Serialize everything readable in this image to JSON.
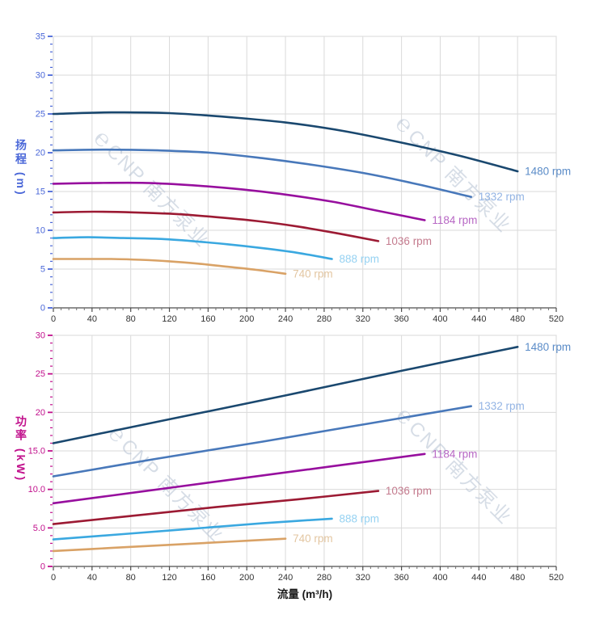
{
  "watermark": {
    "logo": "℮",
    "text": "CNP 南方泵业",
    "color": "#b6c2d3"
  },
  "chart_data": [
    {
      "id": "head",
      "type": "line",
      "title": "",
      "ylabel": "扬程 (m)",
      "xlabel": "",
      "axis_color": "#4a67d8",
      "x_tick_color": "#333333",
      "grid": true,
      "legend_position": "line-end",
      "xlim": [
        0,
        520
      ],
      "ylim": [
        0,
        35
      ],
      "x_major": 40,
      "x_minor": 8,
      "y_minor": 1,
      "y_ticks": [
        {
          "value": 0,
          "label": "0"
        },
        {
          "value": 5,
          "label": "5"
        },
        {
          "value": 10,
          "label": "10"
        },
        {
          "value": 15,
          "label": "15"
        },
        {
          "value": 20,
          "label": "20"
        },
        {
          "value": 25,
          "label": "25"
        },
        {
          "value": 30,
          "label": "30"
        },
        {
          "value": 35,
          "label": "35"
        }
      ],
      "series": [
        {
          "name": "1480 rpm",
          "color": "#1a486f",
          "label_color": "#5b8cc8",
          "x": [
            0,
            60,
            120,
            180,
            240,
            300,
            360,
            420,
            480
          ],
          "y": [
            25.0,
            25.2,
            25.1,
            24.6,
            23.9,
            22.8,
            21.3,
            19.6,
            17.6
          ]
        },
        {
          "name": "1332 rpm",
          "color": "#4878ba",
          "label_color": "#93b4e4",
          "x": [
            0,
            54,
            108,
            162,
            216,
            270,
            324,
            378,
            432
          ],
          "y": [
            20.3,
            20.4,
            20.3,
            20.0,
            19.3,
            18.4,
            17.3,
            15.9,
            14.3
          ]
        },
        {
          "name": "1184 rpm",
          "color": "#970f9e",
          "label_color": "#b767c4",
          "x": [
            0,
            48,
            96,
            144,
            192,
            240,
            288,
            336,
            384
          ],
          "y": [
            16.0,
            16.1,
            16.1,
            15.8,
            15.3,
            14.6,
            13.7,
            12.5,
            11.3
          ]
        },
        {
          "name": "1036 rpm",
          "color": "#9c1a33",
          "label_color": "#c47b8e",
          "x": [
            0,
            42,
            84,
            126,
            168,
            210,
            252,
            294,
            336
          ],
          "y": [
            12.3,
            12.4,
            12.3,
            12.1,
            11.7,
            11.2,
            10.5,
            9.6,
            8.6
          ]
        },
        {
          "name": "888 rpm",
          "color": "#3aa8e0",
          "label_color": "#96d2f2",
          "x": [
            0,
            36,
            72,
            108,
            144,
            180,
            216,
            252,
            288
          ],
          "y": [
            9.0,
            9.1,
            9.0,
            8.9,
            8.6,
            8.2,
            7.7,
            7.1,
            6.3
          ]
        },
        {
          "name": "740 rpm",
          "color": "#d9a266",
          "label_color": "#e3c6a1",
          "x": [
            0,
            30,
            60,
            90,
            120,
            150,
            180,
            210,
            240
          ],
          "y": [
            6.3,
            6.3,
            6.3,
            6.2,
            6.0,
            5.7,
            5.3,
            4.9,
            4.4
          ]
        }
      ]
    },
    {
      "id": "power",
      "type": "line",
      "title": "",
      "ylabel": "功率 (kW)",
      "xlabel": "流量 (m³/h)",
      "axis_color": "#c1108c",
      "x_tick_color": "#333333",
      "grid": true,
      "legend_position": "line-end",
      "xlim": [
        0,
        520
      ],
      "ylim": [
        0,
        30
      ],
      "x_major": 40,
      "x_minor": 8,
      "y_minor": 1,
      "y_ticks": [
        {
          "value": 0,
          "label": "0"
        },
        {
          "value": 5,
          "label": "5.0"
        },
        {
          "value": 10,
          "label": "10.0"
        },
        {
          "value": 15,
          "label": "15.0"
        },
        {
          "value": 20,
          "label": "20"
        },
        {
          "value": 25,
          "label": "25"
        },
        {
          "value": 30,
          "label": "30"
        }
      ],
      "series": [
        {
          "name": "1480 rpm",
          "color": "#1a486f",
          "label_color": "#5b8cc8",
          "x": [
            0,
            120,
            240,
            360,
            480
          ],
          "y": [
            16.0,
            19.1,
            22.2,
            25.4,
            28.5
          ]
        },
        {
          "name": "1332 rpm",
          "color": "#4878ba",
          "label_color": "#93b4e4",
          "x": [
            0,
            108,
            216,
            324,
            432
          ],
          "y": [
            11.7,
            14.0,
            16.2,
            18.5,
            20.8
          ]
        },
        {
          "name": "1184 rpm",
          "color": "#970f9e",
          "label_color": "#b767c4",
          "x": [
            0,
            96,
            192,
            288,
            384
          ],
          "y": [
            8.2,
            9.8,
            11.4,
            13.0,
            14.6
          ]
        },
        {
          "name": "1036 rpm",
          "color": "#9c1a33",
          "label_color": "#c47b8e",
          "x": [
            0,
            84,
            168,
            252,
            336
          ],
          "y": [
            5.5,
            6.6,
            7.7,
            8.7,
            9.8
          ]
        },
        {
          "name": "888 rpm",
          "color": "#3aa8e0",
          "label_color": "#96d2f2",
          "x": [
            0,
            72,
            144,
            216,
            288
          ],
          "y": [
            3.5,
            4.2,
            4.9,
            5.6,
            6.2
          ]
        },
        {
          "name": "740 rpm",
          "color": "#d9a266",
          "label_color": "#e3c6a1",
          "x": [
            0,
            60,
            120,
            180,
            240
          ],
          "y": [
            2.0,
            2.4,
            2.8,
            3.2,
            3.6
          ]
        }
      ]
    }
  ]
}
